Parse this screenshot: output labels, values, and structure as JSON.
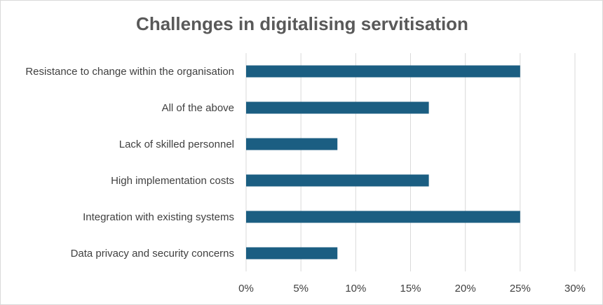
{
  "chart_data": {
    "type": "bar",
    "orientation": "horizontal",
    "title": "Challenges in digitalising servitisation",
    "categories": [
      "Resistance to change within the organisation",
      "All of the above",
      "Lack of skilled personnel",
      "High implementation costs",
      "Integration with existing systems",
      "Data privacy and security concerns"
    ],
    "values": [
      25,
      16.67,
      8.33,
      16.67,
      25,
      8.33
    ],
    "value_unit": "%",
    "xlim": [
      0,
      30
    ],
    "x_ticks": [
      "0%",
      "5%",
      "10%",
      "15%",
      "20%",
      "25%",
      "30%"
    ],
    "grid": true,
    "legend": "none",
    "bar_color": "#1b5e82"
  }
}
